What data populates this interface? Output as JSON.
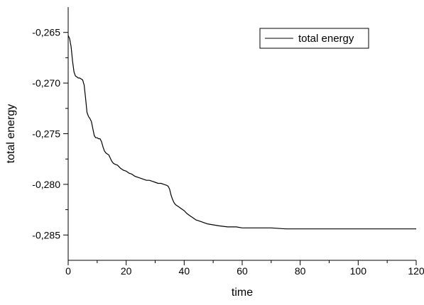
{
  "chart_data": {
    "type": "line",
    "xlabel": "time",
    "ylabel": "total energy",
    "xlim": [
      0,
      120
    ],
    "ylim": [
      -0.2875,
      -0.2625
    ],
    "x_ticks": [
      0,
      20,
      40,
      60,
      80,
      100,
      120
    ],
    "x_tick_labels": [
      "0",
      "20",
      "40",
      "60",
      "80",
      "100",
      "120"
    ],
    "y_ticks": [
      -0.265,
      -0.27,
      -0.275,
      -0.28,
      -0.285
    ],
    "y_tick_labels": [
      "-0,265",
      "-0,270",
      "-0,275",
      "-0,280",
      "-0,285"
    ],
    "grid": false,
    "legend_position": "top-right",
    "series": [
      {
        "name": "total energy",
        "color": "#000000",
        "x": [
          0,
          0.5,
          1,
          1.5,
          2,
          2.5,
          3,
          3.5,
          4,
          4.5,
          5,
          5.5,
          6,
          6.5,
          7,
          7.5,
          8,
          8.5,
          9,
          9.5,
          10,
          10.5,
          11,
          11.5,
          12,
          12.5,
          13,
          13.5,
          14,
          14.5,
          15,
          15.5,
          16,
          17,
          18,
          19,
          20,
          21,
          22,
          23,
          24,
          25,
          26,
          27,
          28,
          29,
          30,
          31,
          32,
          33,
          34,
          34.5,
          35,
          35.5,
          36,
          36.5,
          37,
          37.5,
          38,
          39,
          40,
          41,
          42,
          43,
          44,
          45,
          46,
          47,
          48,
          50,
          52,
          55,
          58,
          60,
          65,
          70,
          75,
          80,
          90,
          100,
          110,
          120
        ],
        "y": [
          -0.2653,
          -0.2656,
          -0.2664,
          -0.2678,
          -0.2689,
          -0.2693,
          -0.2694,
          -0.2695,
          -0.2695,
          -0.2696,
          -0.2697,
          -0.2702,
          -0.2715,
          -0.2729,
          -0.2733,
          -0.2735,
          -0.2738,
          -0.2745,
          -0.2752,
          -0.2754,
          -0.2754,
          -0.2755,
          -0.2755,
          -0.2758,
          -0.2763,
          -0.2767,
          -0.2769,
          -0.277,
          -0.2771,
          -0.2774,
          -0.2777,
          -0.2779,
          -0.278,
          -0.2781,
          -0.2784,
          -0.2786,
          -0.2787,
          -0.2789,
          -0.279,
          -0.2792,
          -0.2793,
          -0.2794,
          -0.2795,
          -0.2796,
          -0.2796,
          -0.2797,
          -0.2798,
          -0.2799,
          -0.2799,
          -0.28,
          -0.2801,
          -0.2802,
          -0.2805,
          -0.2811,
          -0.2815,
          -0.2818,
          -0.282,
          -0.2821,
          -0.2822,
          -0.2824,
          -0.2826,
          -0.2829,
          -0.2831,
          -0.2833,
          -0.2835,
          -0.2836,
          -0.2837,
          -0.2838,
          -0.2839,
          -0.284,
          -0.2841,
          -0.2842,
          -0.2842,
          -0.2843,
          -0.2843,
          -0.2843,
          -0.2844,
          -0.2844,
          -0.2844,
          -0.2844,
          -0.2844,
          -0.2844
        ]
      }
    ]
  }
}
